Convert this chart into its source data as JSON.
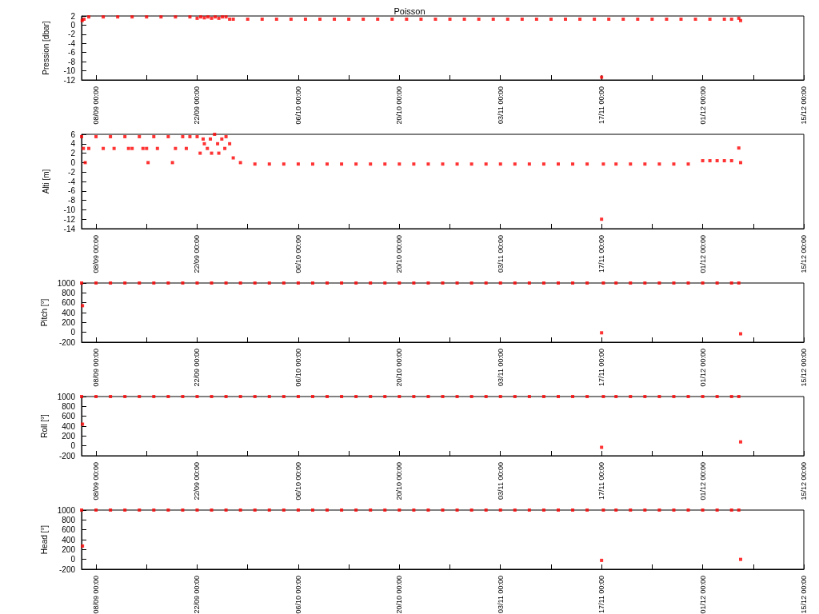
{
  "chart_data": [
    {
      "type": "scatter",
      "title": "Poisson",
      "ylabel": "Pression [dbar]",
      "marker": "square",
      "xlim": [
        "--09-06",
        "--12-15"
      ],
      "xticks": [
        {
          "value": "--09-08",
          "label": "08/09 00:00"
        },
        {
          "value": "--09-15",
          "label": null
        },
        {
          "value": "--09-22",
          "label": "22/09 00:00"
        },
        {
          "value": "--09-29",
          "label": null
        },
        {
          "value": "--10-06",
          "label": "06/10 00:00"
        },
        {
          "value": "--10-13",
          "label": null
        },
        {
          "value": "--10-20",
          "label": "20/10 00:00"
        },
        {
          "value": "--10-27",
          "label": null
        },
        {
          "value": "--11-03",
          "label": "03/11 00:00"
        },
        {
          "value": "--11-10",
          "label": null
        },
        {
          "value": "--11-17",
          "label": "17/11 00:00"
        },
        {
          "value": "--11-24",
          "label": null
        },
        {
          "value": "--12-01",
          "label": "01/12 00:00"
        },
        {
          "value": "--12-08",
          "label": null
        },
        {
          "value": "--12-15",
          "label": "15/12 00:00"
        }
      ],
      "ylim": [
        -12,
        2
      ],
      "yticks": [
        -12,
        -10,
        -8,
        -6,
        -4,
        -2,
        0,
        2
      ],
      "x": [
        "--09-06T02:00",
        "--09-06T08:00",
        "--09-07",
        "--09-09",
        "--09-11",
        "--09-13",
        "--09-15",
        "--09-17",
        "--09-19",
        "--09-21",
        "--09-22",
        "--09-22T12:00",
        "--09-23",
        "--09-23T12:00",
        "--09-24",
        "--09-24T12:00",
        "--09-25",
        "--09-25T12:00",
        "--09-26",
        "--09-26T12:00",
        "--09-27",
        "--09-29",
        "--10-01",
        "--10-03",
        "--10-05",
        "--10-07",
        "--10-09",
        "--10-11",
        "--10-13",
        "--10-15",
        "--10-17",
        "--10-19",
        "--10-21",
        "--10-23",
        "--10-25",
        "--10-27",
        "--10-29",
        "--10-31",
        "--11-02",
        "--11-04",
        "--11-06",
        "--11-08",
        "--11-10",
        "--11-12",
        "--11-14",
        "--11-16",
        "--11-17",
        "--11-18",
        "--11-20",
        "--11-22",
        "--11-24",
        "--11-26",
        "--11-28",
        "--11-30",
        "--12-02",
        "--12-04",
        "--12-05",
        "--12-06",
        "--12-06T06:00"
      ],
      "series": [
        {
          "color": "#ff0000",
          "values": [
            1.0,
            1.3,
            1.8,
            1.8,
            1.8,
            1.8,
            1.8,
            1.8,
            1.8,
            1.8,
            1.5,
            1.8,
            1.6,
            1.8,
            1.5,
            1.8,
            1.5,
            1.8,
            1.8,
            1.3,
            1.3,
            1.3,
            1.3,
            1.3,
            1.3,
            1.3,
            1.3,
            1.3,
            1.3,
            1.3,
            1.3,
            1.3,
            1.3,
            1.3,
            1.3,
            1.3,
            1.3,
            1.3,
            1.3,
            1.3,
            1.3,
            1.3,
            1.3,
            1.3,
            1.3,
            1.3,
            -11.4,
            1.3,
            1.3,
            1.3,
            1.3,
            1.3,
            1.3,
            1.3,
            1.3,
            1.3,
            1.3,
            1.5,
            1.0
          ]
        }
      ]
    },
    {
      "type": "scatter",
      "ylabel": "Alti [m]",
      "marker": "square",
      "xlim": [
        "--09-06",
        "--12-15"
      ],
      "xticks": [
        {
          "value": "--09-08",
          "label": "08/09 00:00"
        },
        {
          "value": "--09-15",
          "label": null
        },
        {
          "value": "--09-22",
          "label": "22/09 00:00"
        },
        {
          "value": "--09-29",
          "label": null
        },
        {
          "value": "--10-06",
          "label": "06/10 00:00"
        },
        {
          "value": "--10-13",
          "label": null
        },
        {
          "value": "--10-20",
          "label": "20/10 00:00"
        },
        {
          "value": "--10-27",
          "label": null
        },
        {
          "value": "--11-03",
          "label": "03/11 00:00"
        },
        {
          "value": "--11-10",
          "label": null
        },
        {
          "value": "--11-17",
          "label": "17/11 00:00"
        },
        {
          "value": "--11-24",
          "label": null
        },
        {
          "value": "--12-01",
          "label": "01/12 00:00"
        },
        {
          "value": "--12-08",
          "label": null
        },
        {
          "value": "--12-15",
          "label": "15/12 00:00"
        }
      ],
      "ylim": [
        -14,
        6
      ],
      "yticks": [
        -14,
        -12,
        -10,
        -8,
        -6,
        -4,
        -2,
        0,
        2,
        4,
        6
      ],
      "x": [
        "--09-06",
        "--09-06T06:00",
        "--09-06T12:00",
        "--09-07",
        "--09-08",
        "--09-09",
        "--09-10",
        "--09-10T12:00",
        "--09-12",
        "--09-12T12:00",
        "--09-13",
        "--09-14",
        "--09-14T12:00",
        "--09-15",
        "--09-15T05:00",
        "--09-16",
        "--09-16T12:00",
        "--09-18",
        "--09-18T14:00",
        "--09-19",
        "--09-20",
        "--09-20T12:00",
        "--09-21",
        "--09-22",
        "--09-22T10:00",
        "--09-22T20:00",
        "--09-23",
        "--09-23T10:00",
        "--09-23T20:00",
        "--09-24",
        "--09-24T10:00",
        "--09-24T20:00",
        "--09-25",
        "--09-25T10:00",
        "--09-25T20:00",
        "--09-26",
        "--09-26T12:00",
        "--09-27",
        "--09-28",
        "--09-30",
        "--10-02",
        "--10-04",
        "--10-06",
        "--10-08",
        "--10-10",
        "--10-12",
        "--10-14",
        "--10-16",
        "--10-18",
        "--10-20",
        "--10-22",
        "--10-24",
        "--10-26",
        "--10-28",
        "--10-30",
        "--11-01",
        "--11-03",
        "--11-05",
        "--11-07",
        "--11-09",
        "--11-11",
        "--11-13",
        "--11-15",
        "--11-17",
        "--11-17T06:00",
        "--11-19",
        "--11-21",
        "--11-23",
        "--11-25",
        "--11-27",
        "--11-29",
        "--12-01",
        "--12-02",
        "--12-03",
        "--12-04",
        "--12-05",
        "--12-06",
        "--12-06T06:00"
      ],
      "series": [
        {
          "color": "#ff0000",
          "values": [
            5.5,
            3.0,
            0.0,
            3.0,
            5.5,
            3.0,
            5.5,
            3.0,
            5.5,
            3.0,
            3.0,
            5.5,
            3.0,
            3.0,
            0.0,
            5.5,
            3.0,
            5.5,
            0.0,
            3.0,
            5.5,
            3.0,
            5.5,
            5.5,
            2.0,
            5.0,
            4.0,
            3.0,
            5.0,
            2.0,
            6.0,
            4.0,
            2.0,
            5.0,
            3.0,
            5.5,
            4.0,
            1.0,
            0.0,
            -0.3,
            -0.3,
            -0.3,
            -0.3,
            -0.3,
            -0.3,
            -0.3,
            -0.3,
            -0.3,
            -0.3,
            -0.3,
            -0.3,
            -0.3,
            -0.3,
            -0.3,
            -0.3,
            -0.3,
            -0.3,
            -0.3,
            -0.3,
            -0.3,
            -0.3,
            -0.3,
            -0.3,
            -12.0,
            -0.3,
            -0.3,
            -0.3,
            -0.3,
            -0.3,
            -0.3,
            -0.3,
            0.4,
            0.4,
            0.4,
            0.4,
            0.4,
            3.1,
            0.0
          ]
        }
      ]
    },
    {
      "type": "scatter",
      "ylabel": "Pitch [°]",
      "marker": "square",
      "xlim": [
        "--09-06",
        "--12-15"
      ],
      "xticks": [
        {
          "value": "--09-08",
          "label": "08/09 00:00"
        },
        {
          "value": "--09-15",
          "label": null
        },
        {
          "value": "--09-22",
          "label": "22/09 00:00"
        },
        {
          "value": "--09-29",
          "label": null
        },
        {
          "value": "--10-06",
          "label": "06/10 00:00"
        },
        {
          "value": "--10-13",
          "label": null
        },
        {
          "value": "--10-20",
          "label": "20/10 00:00"
        },
        {
          "value": "--10-27",
          "label": null
        },
        {
          "value": "--11-03",
          "label": "03/11 00:00"
        },
        {
          "value": "--11-10",
          "label": null
        },
        {
          "value": "--11-17",
          "label": "17/11 00:00"
        },
        {
          "value": "--11-24",
          "label": null
        },
        {
          "value": "--12-01",
          "label": "01/12 00:00"
        },
        {
          "value": "--12-08",
          "label": null
        },
        {
          "value": "--12-15",
          "label": "15/12 00:00"
        }
      ],
      "ylim": [
        -200,
        1000
      ],
      "yticks": [
        -200,
        0,
        200,
        400,
        600,
        800,
        1000
      ],
      "x": [
        "--09-06",
        "--09-06T03:00",
        "--09-08",
        "--09-10",
        "--09-12",
        "--09-14",
        "--09-16",
        "--09-18",
        "--09-20",
        "--09-22",
        "--09-24",
        "--09-26",
        "--09-28",
        "--09-30",
        "--10-02",
        "--10-04",
        "--10-06",
        "--10-08",
        "--10-10",
        "--10-12",
        "--10-14",
        "--10-16",
        "--10-18",
        "--10-20",
        "--10-22",
        "--10-24",
        "--10-26",
        "--10-28",
        "--10-30",
        "--11-01",
        "--11-03",
        "--11-05",
        "--11-07",
        "--11-09",
        "--11-11",
        "--11-13",
        "--11-15",
        "--11-17",
        "--11-17T06:00",
        "--11-19",
        "--11-21",
        "--11-23",
        "--11-25",
        "--11-27",
        "--11-29",
        "--12-01",
        "--12-03",
        "--12-05",
        "--12-06",
        "--12-06T06:00"
      ],
      "series": [
        {
          "color": "#ff0000",
          "values": [
            1000,
            540,
            1000,
            1000,
            1000,
            1000,
            1000,
            1000,
            1000,
            1000,
            1000,
            1000,
            1000,
            1000,
            1000,
            1000,
            1000,
            1000,
            1000,
            1000,
            1000,
            1000,
            1000,
            1000,
            1000,
            1000,
            1000,
            1000,
            1000,
            1000,
            1000,
            1000,
            1000,
            1000,
            1000,
            1000,
            1000,
            -10,
            1000,
            1000,
            1000,
            1000,
            1000,
            1000,
            1000,
            1000,
            1000,
            1000,
            1000,
            -30
          ]
        }
      ]
    },
    {
      "type": "scatter",
      "ylabel": "Roll [°]",
      "marker": "square",
      "xlim": [
        "--09-06",
        "--12-15"
      ],
      "xticks": [
        {
          "value": "--09-08",
          "label": "08/09 00:00"
        },
        {
          "value": "--09-15",
          "label": null
        },
        {
          "value": "--09-22",
          "label": "22/09 00:00"
        },
        {
          "value": "--09-29",
          "label": null
        },
        {
          "value": "--10-06",
          "label": "06/10 00:00"
        },
        {
          "value": "--10-13",
          "label": null
        },
        {
          "value": "--10-20",
          "label": "20/10 00:00"
        },
        {
          "value": "--10-27",
          "label": null
        },
        {
          "value": "--11-03",
          "label": "03/11 00:00"
        },
        {
          "value": "--11-10",
          "label": null
        },
        {
          "value": "--11-17",
          "label": "17/11 00:00"
        },
        {
          "value": "--11-24",
          "label": null
        },
        {
          "value": "--12-01",
          "label": "01/12 00:00"
        },
        {
          "value": "--12-08",
          "label": null
        },
        {
          "value": "--12-15",
          "label": "15/12 00:00"
        }
      ],
      "ylim": [
        -200,
        1000
      ],
      "yticks": [
        -200,
        0,
        200,
        400,
        600,
        800,
        1000
      ],
      "x": [
        "--09-06",
        "--09-06T03:00",
        "--09-08",
        "--09-10",
        "--09-12",
        "--09-14",
        "--09-16",
        "--09-18",
        "--09-20",
        "--09-22",
        "--09-24",
        "--09-26",
        "--09-28",
        "--09-30",
        "--10-02",
        "--10-04",
        "--10-06",
        "--10-08",
        "--10-10",
        "--10-12",
        "--10-14",
        "--10-16",
        "--10-18",
        "--10-20",
        "--10-22",
        "--10-24",
        "--10-26",
        "--10-28",
        "--10-30",
        "--11-01",
        "--11-03",
        "--11-05",
        "--11-07",
        "--11-09",
        "--11-11",
        "--11-13",
        "--11-15",
        "--11-17",
        "--11-17T06:00",
        "--11-19",
        "--11-21",
        "--11-23",
        "--11-25",
        "--11-27",
        "--11-29",
        "--12-01",
        "--12-03",
        "--12-05",
        "--12-06",
        "--12-06T06:00"
      ],
      "series": [
        {
          "color": "#ff0000",
          "values": [
            1000,
            440,
            1000,
            1000,
            1000,
            1000,
            1000,
            1000,
            1000,
            1000,
            1000,
            1000,
            1000,
            1000,
            1000,
            1000,
            1000,
            1000,
            1000,
            1000,
            1000,
            1000,
            1000,
            1000,
            1000,
            1000,
            1000,
            1000,
            1000,
            1000,
            1000,
            1000,
            1000,
            1000,
            1000,
            1000,
            1000,
            -30,
            1000,
            1000,
            1000,
            1000,
            1000,
            1000,
            1000,
            1000,
            1000,
            1000,
            1000,
            80
          ]
        }
      ]
    },
    {
      "type": "scatter",
      "ylabel": "Head [°]",
      "marker": "square",
      "xlim": [
        "--09-06",
        "--12-15"
      ],
      "xticks": [
        {
          "value": "--09-08",
          "label": "08/09 00:00"
        },
        {
          "value": "--09-15",
          "label": null
        },
        {
          "value": "--09-22",
          "label": "22/09 00:00"
        },
        {
          "value": "--09-29",
          "label": null
        },
        {
          "value": "--10-06",
          "label": "06/10 00:00"
        },
        {
          "value": "--10-13",
          "label": null
        },
        {
          "value": "--10-20",
          "label": "20/10 00:00"
        },
        {
          "value": "--10-27",
          "label": null
        },
        {
          "value": "--11-03",
          "label": "03/11 00:00"
        },
        {
          "value": "--11-10",
          "label": null
        },
        {
          "value": "--11-17",
          "label": "17/11 00:00"
        },
        {
          "value": "--11-24",
          "label": null
        },
        {
          "value": "--12-01",
          "label": "01/12 00:00"
        },
        {
          "value": "--12-08",
          "label": null
        },
        {
          "value": "--12-15",
          "label": "15/12 00:00"
        }
      ],
      "ylim": [
        -200,
        1000
      ],
      "yticks": [
        -200,
        0,
        200,
        400,
        600,
        800,
        1000
      ],
      "x": [
        "--09-06",
        "--09-06T03:00",
        "--09-08",
        "--09-10",
        "--09-12",
        "--09-14",
        "--09-16",
        "--09-18",
        "--09-20",
        "--09-22",
        "--09-24",
        "--09-26",
        "--09-28",
        "--09-30",
        "--10-02",
        "--10-04",
        "--10-06",
        "--10-08",
        "--10-10",
        "--10-12",
        "--10-14",
        "--10-16",
        "--10-18",
        "--10-20",
        "--10-22",
        "--10-24",
        "--10-26",
        "--10-28",
        "--10-30",
        "--11-01",
        "--11-03",
        "--11-05",
        "--11-07",
        "--11-09",
        "--11-11",
        "--11-13",
        "--11-15",
        "--11-17",
        "--11-17T06:00",
        "--11-19",
        "--11-21",
        "--11-23",
        "--11-25",
        "--11-27",
        "--11-29",
        "--12-01",
        "--12-03",
        "--12-05",
        "--12-06",
        "--12-06T06:00"
      ],
      "series": [
        {
          "color": "#ff0000",
          "values": [
            1000,
            270,
            1000,
            1000,
            1000,
            1000,
            1000,
            1000,
            1000,
            1000,
            1000,
            1000,
            1000,
            1000,
            1000,
            1000,
            1000,
            1000,
            1000,
            1000,
            1000,
            1000,
            1000,
            1000,
            1000,
            1000,
            1000,
            1000,
            1000,
            1000,
            1000,
            1000,
            1000,
            1000,
            1000,
            1000,
            1000,
            -20,
            1000,
            1000,
            1000,
            1000,
            1000,
            1000,
            1000,
            1000,
            1000,
            1000,
            1000,
            0
          ]
        }
      ]
    }
  ]
}
